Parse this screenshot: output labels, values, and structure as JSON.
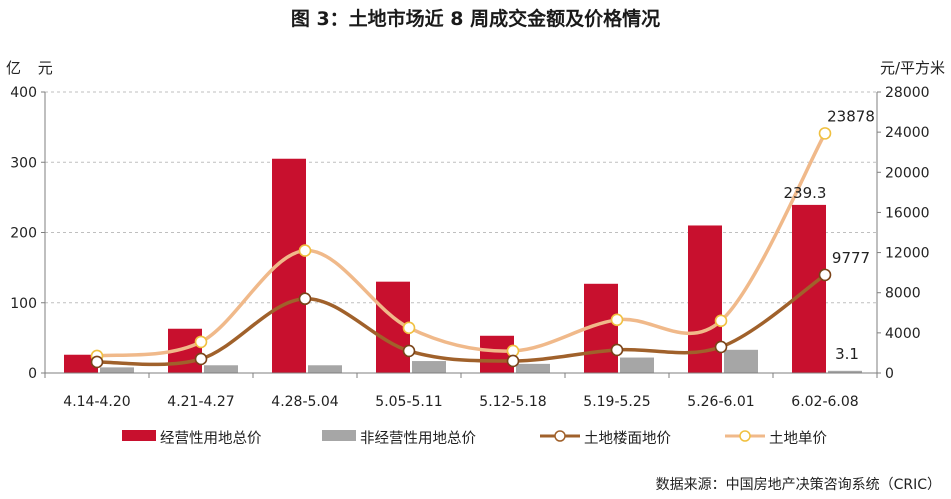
{
  "chart_data": {
    "type": "bar",
    "title": "图 3：土地市场近 8 周成交金额及价格情况",
    "left_axis_unit": "亿 元",
    "right_axis_unit": "元/平方米",
    "categories": [
      "4.14-4.20",
      "4.21-4.27",
      "4.28-5.04",
      "5.05-5.11",
      "5.12-5.18",
      "5.19-5.25",
      "5.26-6.01",
      "6.02-6.08"
    ],
    "ylim": [
      0,
      400
    ],
    "y_ticks": [
      0,
      100,
      200,
      300,
      400
    ],
    "y2lim": [
      0,
      28000
    ],
    "y2_ticks": [
      0,
      4000,
      8000,
      12000,
      16000,
      20000,
      24000,
      28000
    ],
    "grid": "horizontal dashed",
    "legend_position": "bottom",
    "series": [
      {
        "name": "经营性用地总价",
        "kind": "bar",
        "axis": "left",
        "color": "#c8102e",
        "values": [
          26,
          63,
          305,
          130,
          53,
          127,
          210,
          239.3
        ],
        "labels": [
          "",
          "",
          "",
          "",
          "",
          "",
          "",
          "239.3"
        ]
      },
      {
        "name": "非经营性用地总价",
        "kind": "bar",
        "axis": "left",
        "color": "#a6a6a6",
        "values": [
          8,
          11,
          11,
          17,
          13,
          22,
          33,
          3.1
        ],
        "labels": [
          "",
          "",
          "",
          "",
          "",
          "",
          "",
          "3.1"
        ]
      },
      {
        "name": "土地楼面地价",
        "kind": "line",
        "axis": "right",
        "color": "#a0612b",
        "values": [
          1100,
          1400,
          7400,
          2200,
          1200,
          2300,
          2600,
          9777
        ],
        "labels": [
          "",
          "",
          "",
          "",
          "",
          "",
          "",
          "9777"
        ]
      },
      {
        "name": "土地单价",
        "kind": "line",
        "axis": "right",
        "color": "#f0b98a",
        "values": [
          1700,
          3100,
          12200,
          4500,
          2200,
          5300,
          5200,
          23878
        ],
        "labels": [
          "",
          "",
          "",
          "",
          "",
          "",
          "",
          "23878"
        ]
      }
    ]
  },
  "source": "数据来源：中国房地产决策咨询系统（CRIC）"
}
